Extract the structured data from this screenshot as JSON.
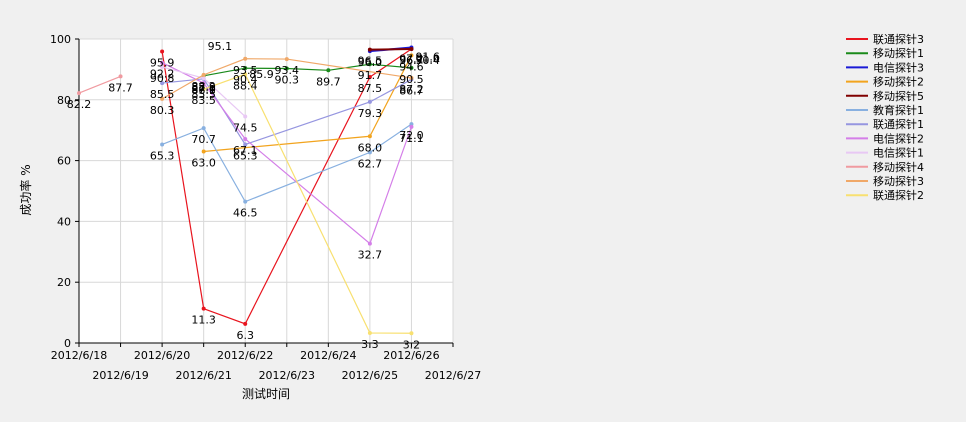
{
  "chart_data": {
    "type": "line",
    "xlabel": "测试时间",
    "ylabel": "成功率 %",
    "ylim": [
      0,
      100
    ],
    "yticks": [
      0,
      20,
      40,
      60,
      80,
      100
    ],
    "xlim": [
      "2012/6/18",
      "2012/6/27"
    ],
    "xticks": [
      "2012/6/18",
      "2012/6/19",
      "2012/6/20",
      "2012/6/21",
      "2012/6/22",
      "2012/6/23",
      "2012/6/24",
      "2012/6/25",
      "2012/6/26",
      "2012/6/27"
    ],
    "grid": true,
    "legend_position": "top-right",
    "series": [
      {
        "name": "联通探针3",
        "color": "#e8141e",
        "x": [
          "2012/6/20",
          "2012/6/21",
          "2012/6/22",
          "2012/6/25",
          "2012/6/26"
        ],
        "values": [
          95.9,
          11.3,
          6.3,
          87.5,
          96.7
        ]
      },
      {
        "name": "移动探针1",
        "color": "#1a8a1a",
        "x": [
          "2012/6/21",
          "2012/6/22",
          "2012/6/23",
          "2012/6/24",
          "2012/6/25",
          "2012/6/26"
        ],
        "values": [
          87.9,
          90.4,
          90.3,
          89.7,
          91.7,
          90.5
        ]
      },
      {
        "name": "电信探针3",
        "color": "#1a1ad6",
        "x": [
          "2012/6/25",
          "2012/6/26"
        ],
        "values": [
          96.0,
          97.2
        ]
      },
      {
        "name": "移动探针2",
        "color": "#f2a41e",
        "x": [
          "2012/6/21",
          "2012/6/25",
          "2012/6/26"
        ],
        "values": [
          63.0,
          68.0,
          94.6
        ]
      },
      {
        "name": "移动探针5",
        "color": "#800000",
        "x": [
          "2012/6/25",
          "2012/6/26"
        ],
        "values": [
          96.5,
          96.7
        ]
      },
      {
        "name": "教育探针1",
        "color": "#88b0e0",
        "x": [
          "2012/6/20",
          "2012/6/21",
          "2012/6/22",
          "2012/6/25",
          "2012/6/26"
        ],
        "values": [
          65.3,
          70.7,
          46.5,
          62.7,
          72.0
        ]
      },
      {
        "name": "联通探针1",
        "color": "#9696e0",
        "x": [
          "2012/6/20",
          "2012/6/21",
          "2012/6/22",
          "2012/6/25",
          "2012/6/26"
        ],
        "values": [
          85.5,
          86.9,
          65.3,
          79.3,
          86.7
        ]
      },
      {
        "name": "电信探针2",
        "color": "#d47ee8",
        "x": [
          "2012/6/20",
          "2012/6/21",
          "2012/6/22",
          "2012/6/25",
          "2012/6/26"
        ],
        "values": [
          92.2,
          85.5,
          67.1,
          32.7,
          71.1
        ]
      },
      {
        "name": "电信探针1",
        "color": "#e8c8f4",
        "x": [
          "2012/6/20",
          "2012/6/21",
          "2012/6/22"
        ],
        "values": [
          90.8,
          87.1,
          74.5
        ]
      },
      {
        "name": "移动探针4",
        "color": "#f09aa0",
        "x": [
          "2012/6/18",
          "2012/6/19"
        ],
        "values": [
          82.2,
          87.7
        ]
      },
      {
        "name": "移动探针3",
        "color": "#f0a868",
        "x": [
          "2012/6/20",
          "2012/6/21",
          "2012/6/22",
          "2012/6/23",
          "2012/6/26"
        ],
        "values": [
          80.3,
          88.2,
          93.5,
          93.4,
          87.2
        ]
      },
      {
        "name": "联通探针2",
        "color": "#f8e070",
        "x": [
          "2012/6/21",
          "2012/6/22",
          "2012/6/25",
          "2012/6/26"
        ],
        "values": [
          83.5,
          88.4,
          3.3,
          3.2
        ]
      }
    ],
    "annotations": [
      {
        "x": "2012/6/21",
        "y": 95.1,
        "text": "95.1"
      },
      {
        "x": "2012/6/22",
        "y": 85.9,
        "text": "85.9"
      },
      {
        "x": "2012/6/26",
        "y": 91.6,
        "text": "91.6"
      },
      {
        "x": "2012/6/26",
        "y": 91.0,
        "text": "91.0"
      },
      {
        "x": "2012/6/26",
        "y": 90.4,
        "text": "90.4"
      }
    ]
  }
}
